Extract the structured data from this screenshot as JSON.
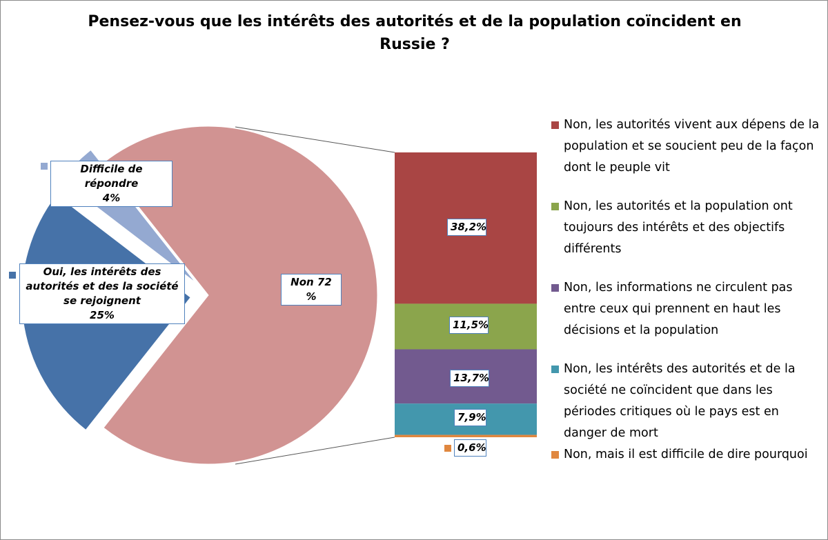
{
  "chart_data": {
    "type": "pie-of-bar",
    "title": "Pensez-vous que les intérêts des autorités et de la population coïncident en Russie ?",
    "pie": [
      {
        "name": "Non",
        "label": "Non 72 %",
        "value": 72,
        "color": "#d19392"
      },
      {
        "name": "Oui, les intérêts des autorités et des la société se rejoignent",
        "label_text": "Oui, les intérêts des autorités et des la société se rejoignent",
        "label_value": "25%",
        "value": 25,
        "color": "#4672a8"
      },
      {
        "name": "Difficile de répondre",
        "label_text": "Difficile de répondre",
        "label_value": "4%",
        "value": 4,
        "color": "#94a9d1"
      }
    ],
    "bar": [
      {
        "name": "Non, les autorités vivent aux dépens de la population et se soucient peu de la façon dont le peuple vit",
        "value": 38.2,
        "label": "38,2%",
        "color": "#a94544"
      },
      {
        "name": "Non, les autorités et la population ont toujours des intérêts et des objectifs différents",
        "value": 11.5,
        "label": "11,5%",
        "color": "#8ba54c"
      },
      {
        "name": "Non, les informations ne circulent pas entre ceux qui prennent en haut les décisions et la population",
        "value": 13.7,
        "label": "13,7%",
        "color": "#725a8f"
      },
      {
        "name": "Non, les intérêts des autorités et de la société ne coïncident que dans les périodes critiques où le pays est en danger de mort",
        "value": 7.9,
        "label": "7,9%",
        "color": "#4397ad"
      },
      {
        "name": "Non, mais il est difficile de dire pourquoi",
        "value": 0.6,
        "label": "0,6%",
        "color": "#e0873f"
      }
    ],
    "legend_position": "right"
  }
}
